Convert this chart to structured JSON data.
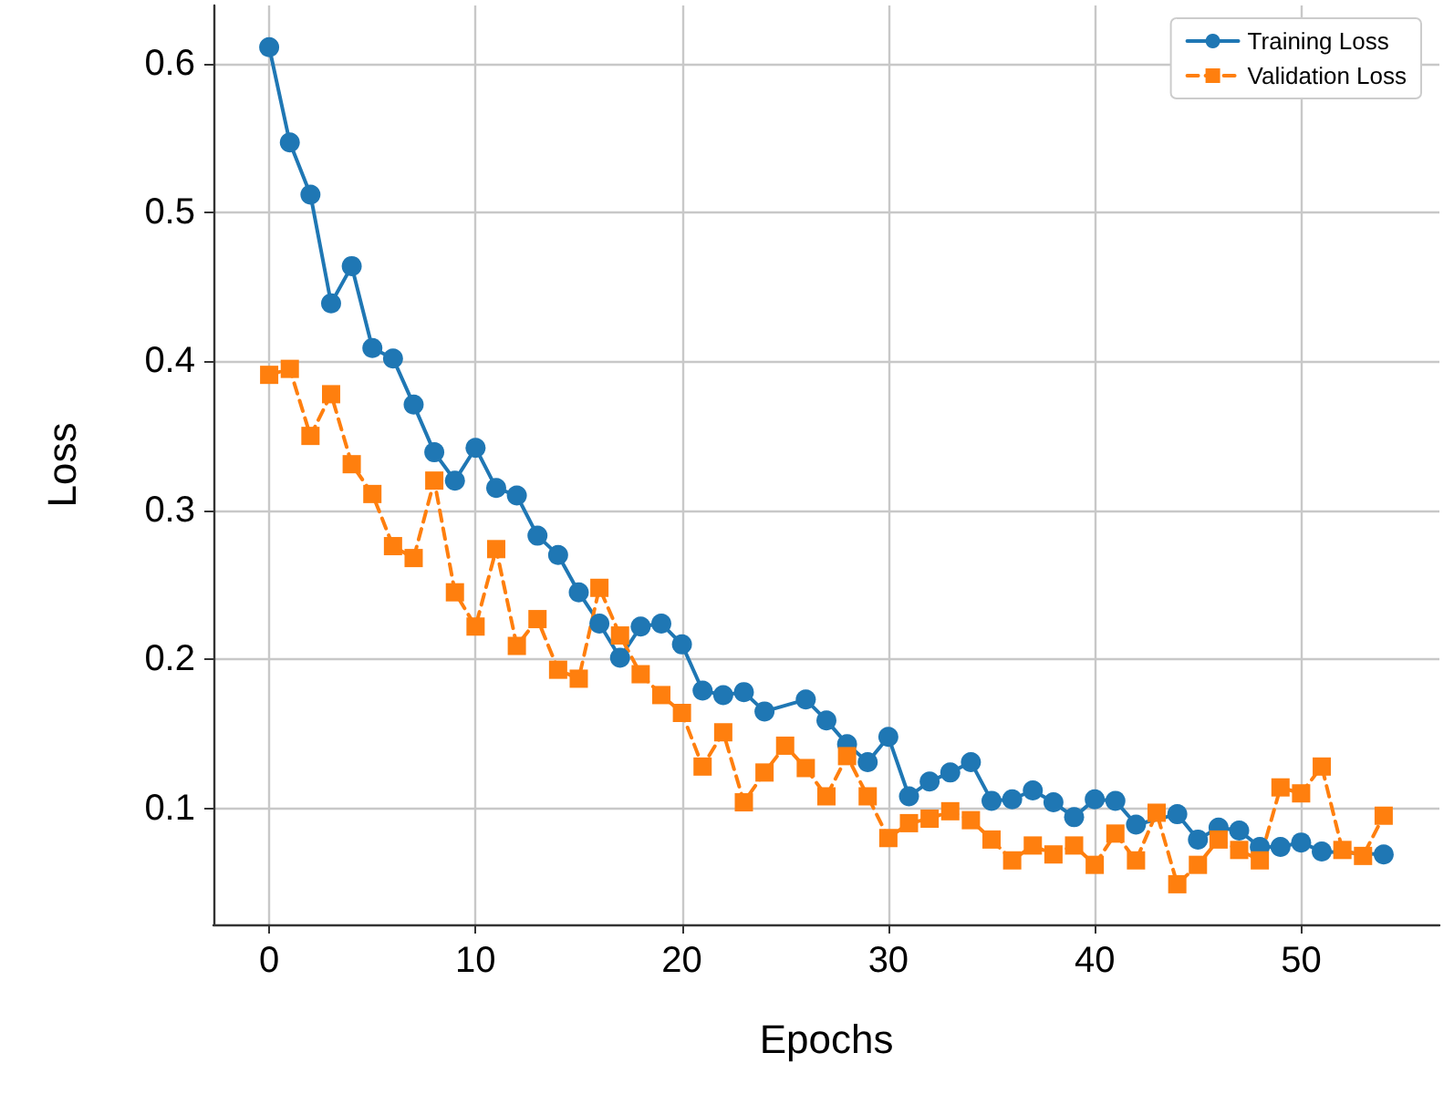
{
  "chart_data": {
    "type": "line",
    "xlabel": "Epochs",
    "ylabel": "Loss",
    "x": [
      0,
      1,
      2,
      3,
      4,
      5,
      6,
      7,
      8,
      9,
      10,
      11,
      12,
      13,
      14,
      15,
      16,
      17,
      18,
      19,
      20,
      21,
      22,
      23,
      24,
      25,
      26,
      27,
      28,
      29,
      30,
      31,
      32,
      33,
      34,
      35,
      36,
      37,
      38,
      39,
      40,
      41,
      42,
      43,
      44,
      45,
      46,
      47,
      48,
      49,
      50,
      51,
      52,
      53,
      54
    ],
    "series": [
      {
        "name": "Training Loss",
        "color": "#1f77b4",
        "marker": "circle",
        "line_style": "solid",
        "values": [
          0.611,
          0.547,
          0.512,
          0.439,
          0.464,
          0.409,
          0.402,
          0.371,
          0.339,
          0.32,
          0.342,
          0.315,
          0.31,
          0.283,
          0.27,
          0.245,
          0.224,
          0.201,
          0.222,
          0.224,
          0.21,
          0.179,
          0.176,
          0.178,
          0.165,
          null,
          0.173,
          0.159,
          0.143,
          0.131,
          0.148,
          0.108,
          0.118,
          0.124,
          0.131,
          0.105,
          0.106,
          0.112,
          0.104,
          0.094,
          0.106,
          0.105,
          0.089,
          null,
          0.096,
          0.079,
          0.087,
          0.085,
          0.074,
          0.074,
          0.077,
          0.071,
          null,
          null,
          0.069
        ]
      },
      {
        "name": "Validation Loss",
        "color": "#ff7f0e",
        "marker": "square",
        "line_style": "dashed",
        "values": [
          0.391,
          0.395,
          0.35,
          0.378,
          0.331,
          0.311,
          0.276,
          0.268,
          0.32,
          0.245,
          0.222,
          0.274,
          0.209,
          0.227,
          0.193,
          0.187,
          0.248,
          0.216,
          0.19,
          0.176,
          0.164,
          0.128,
          0.151,
          0.104,
          0.124,
          0.142,
          0.127,
          0.108,
          0.135,
          0.108,
          0.08,
          0.09,
          0.093,
          0.098,
          0.092,
          0.079,
          0.065,
          0.075,
          0.069,
          0.075,
          0.062,
          0.083,
          0.065,
          0.097,
          0.049,
          0.062,
          0.079,
          0.072,
          0.065,
          0.114,
          0.11,
          0.128,
          0.072,
          0.068,
          0.095
        ]
      }
    ],
    "xlim": [
      -2.7,
      56.7
    ],
    "xticks": [
      0,
      10,
      20,
      30,
      40,
      50
    ],
    "ylim": [
      0.022,
      0.639
    ],
    "yticks": [
      0.1,
      0.2,
      0.3,
      0.4,
      0.5,
      0.6
    ],
    "grid": true,
    "legend": "top right"
  }
}
